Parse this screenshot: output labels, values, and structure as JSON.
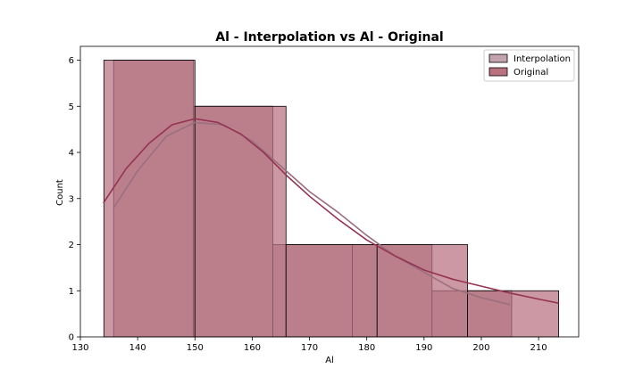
{
  "chart_data": {
    "type": "histogram",
    "title": "Al - Interpolation vs Al - Original",
    "xlabel": "Al",
    "ylabel": "Count",
    "xlim": [
      130,
      217
    ],
    "ylim": [
      0,
      6.3
    ],
    "xticks": [
      130,
      140,
      150,
      160,
      170,
      180,
      190,
      200,
      210
    ],
    "yticks": [
      0,
      1,
      2,
      3,
      4,
      5,
      6
    ],
    "legend_position": "top-right",
    "grid": false,
    "series": [
      {
        "name": "Interpolation",
        "color": "#c3a4ae",
        "bins": [
          {
            "x0": 135.8,
            "x1": 149.7,
            "count": 6
          },
          {
            "x0": 149.7,
            "x1": 163.6,
            "count": 5
          },
          {
            "x0": 163.6,
            "x1": 177.5,
            "count": 2
          },
          {
            "x0": 177.5,
            "x1": 191.4,
            "count": 2
          },
          {
            "x0": 191.4,
            "x1": 205.3,
            "count": 1
          }
        ],
        "kde_color": "#9a6f7e",
        "kde": [
          [
            135.8,
            2.8
          ],
          [
            140,
            3.6
          ],
          [
            145,
            4.35
          ],
          [
            150,
            4.65
          ],
          [
            155,
            4.6
          ],
          [
            160,
            4.25
          ],
          [
            165,
            3.7
          ],
          [
            170,
            3.15
          ],
          [
            175,
            2.7
          ],
          [
            180,
            2.2
          ],
          [
            185,
            1.75
          ],
          [
            190,
            1.4
          ],
          [
            195,
            1.05
          ],
          [
            200,
            0.85
          ],
          [
            205,
            0.7
          ]
        ]
      },
      {
        "name": "Original",
        "color": "#b9707f",
        "bins": [
          {
            "x0": 134.1,
            "x1": 150.0,
            "count": 6
          },
          {
            "x0": 150.0,
            "x1": 165.9,
            "count": 5
          },
          {
            "x0": 165.9,
            "x1": 181.8,
            "count": 2
          },
          {
            "x0": 181.8,
            "x1": 197.6,
            "count": 2
          },
          {
            "x0": 197.6,
            "x1": 213.5,
            "count": 1
          }
        ],
        "kde_color": "#943452",
        "kde": [
          [
            134,
            2.9
          ],
          [
            138,
            3.65
          ],
          [
            142,
            4.2
          ],
          [
            146,
            4.6
          ],
          [
            150,
            4.73
          ],
          [
            154,
            4.65
          ],
          [
            158,
            4.4
          ],
          [
            162,
            4.0
          ],
          [
            166,
            3.5
          ],
          [
            170,
            3.05
          ],
          [
            175,
            2.55
          ],
          [
            180,
            2.1
          ],
          [
            185,
            1.75
          ],
          [
            190,
            1.45
          ],
          [
            195,
            1.25
          ],
          [
            200,
            1.1
          ],
          [
            205,
            0.95
          ],
          [
            210,
            0.82
          ],
          [
            213.5,
            0.73
          ]
        ]
      }
    ]
  }
}
